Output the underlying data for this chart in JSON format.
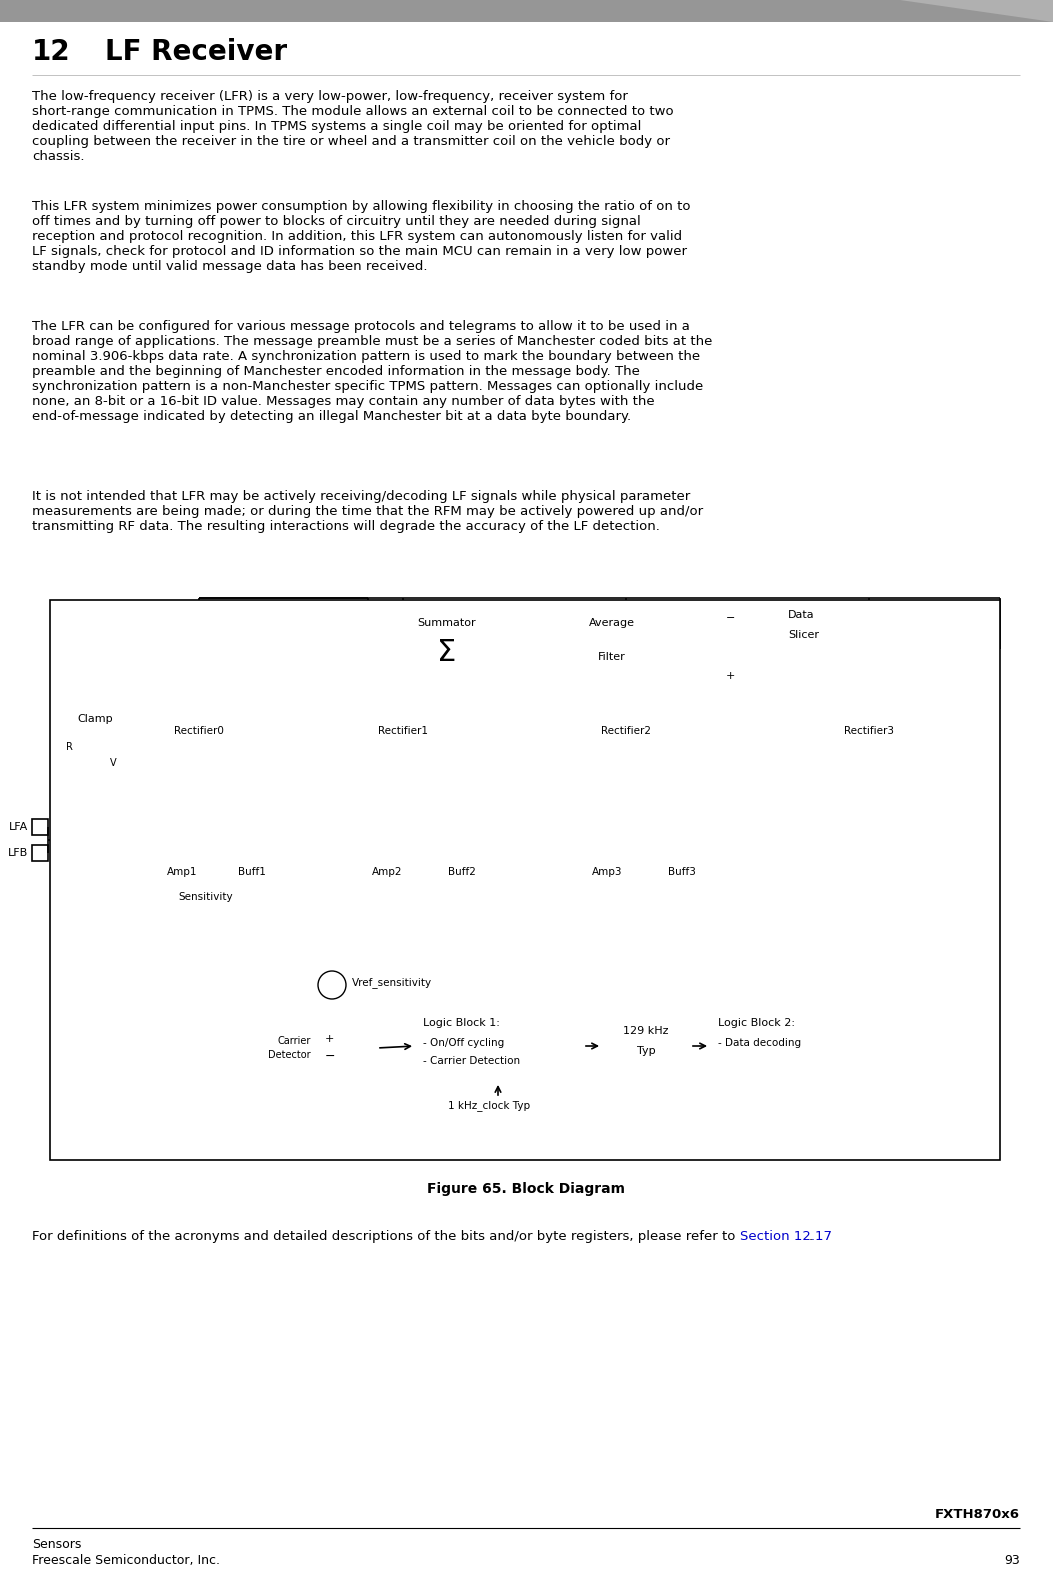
{
  "title_num": "12",
  "title_text": "LF Receiver",
  "para1": "The low-frequency receiver (LFR) is a very low-power, low-frequency, receiver system for short-range communication in TPMS. The module allows an external coil to be connected to two dedicated differential input pins. In TPMS systems a single coil may be oriented for optimal coupling between the receiver in the tire or wheel and a transmitter coil on the vehicle body or chassis.",
  "para2": "This LFR system minimizes power consumption by allowing flexibility in choosing the ratio of on to off times and by turning off power to blocks of circuitry until they are needed during signal reception and protocol recognition. In addition, this LFR system can autonomously listen for valid LF signals, check for protocol and ID information so the main MCU can remain in a very low power standby mode until valid message data has been received.",
  "para3": "The LFR can be configured for various message protocols and telegrams to allow it to be used in a broad range of applications. The message preamble must be a series of Manchester coded bits at the nominal 3.906-kbps data rate. A synchronization pattern is used to mark the boundary between the preamble and the beginning of Manchester encoded information in the message body. The synchronization pattern is a non-Manchester specific TPMS pattern. Messages can optionally include none, an 8-bit or a 16-bit ID value. Messages may contain any number of data bytes with the end-of-message indicated by detecting an illegal Manchester bit at a data byte boundary.",
  "para4": "It is not intended that LFR may be actively receiving/decoding LF signals while physical parameter measurements are being made; or during the time that the RFM may be actively powered up and/or transmitting RF data. The resulting interactions will degrade the accuracy of the LF detection.",
  "fig_caption": "Figure 65. Block Diagram",
  "footer_pre": "For definitions of the acronyms and detailed descriptions of the bits and/or byte registers, please refer to ",
  "footer_link": "Section 12.17",
  "footer_post": ".",
  "bottom_right": "FXTH870x6",
  "bottom_left1": "Sensors",
  "bottom_left2": "Freescale Semiconductor, Inc.",
  "bottom_page": "93",
  "header_color": "#909090",
  "link_color": "#0000CC",
  "bg_color": "#FFFFFF",
  "text_color": "#000000",
  "body_fontsize": 9.5,
  "title_fontsize": 20,
  "caption_fontsize": 10
}
